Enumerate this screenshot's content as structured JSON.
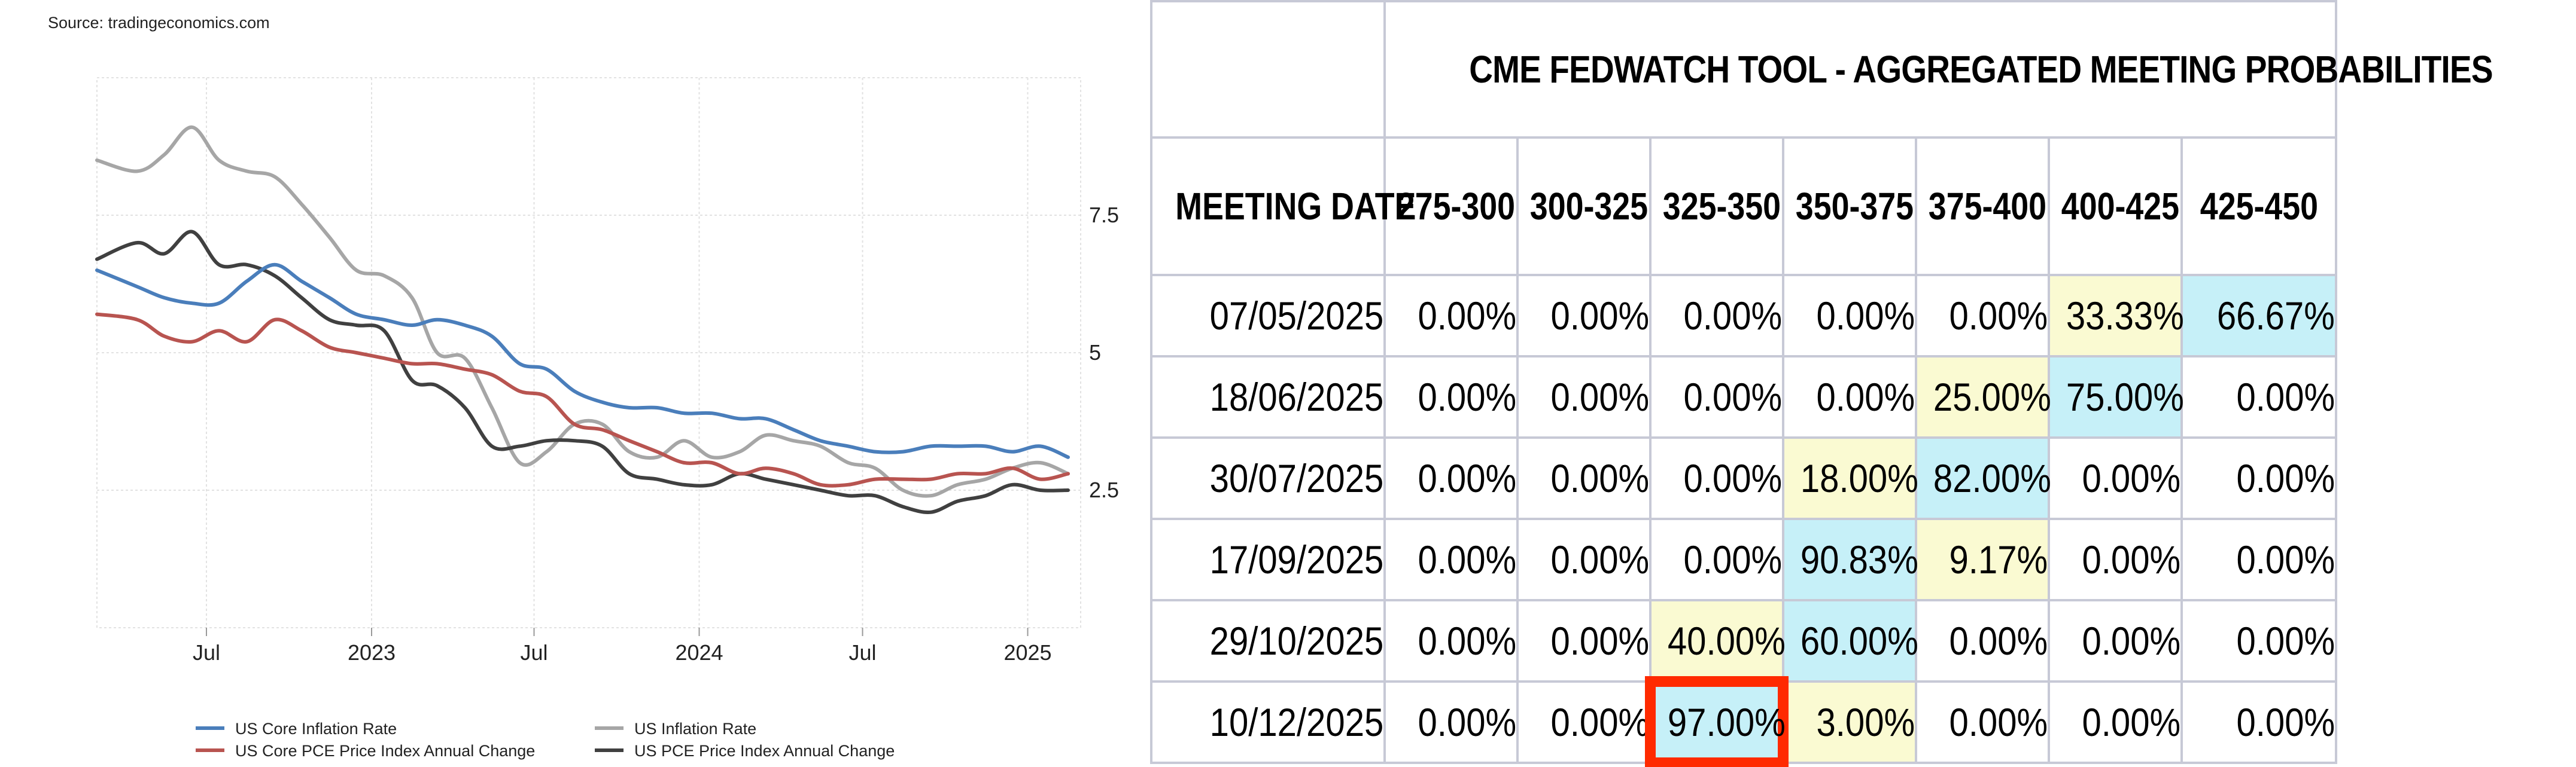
{
  "source_text": "Source: tradingeconomics.com",
  "chart_data": {
    "type": "line",
    "title": "",
    "xlabel": "",
    "ylabel": "",
    "x_ticks": [
      {
        "label": "Jul",
        "date": "2022-07-01"
      },
      {
        "label": "2023",
        "date": "2023-01-01"
      },
      {
        "label": "Jul",
        "date": "2023-07-01"
      },
      {
        "label": "2024",
        "date": "2024-01-01"
      },
      {
        "label": "Jul",
        "date": "2024-07-01"
      },
      {
        "label": "2025",
        "date": "2025-01-01"
      }
    ],
    "x_range": [
      "2022-03-01",
      "2025-03-01"
    ],
    "y_ticks": [
      {
        "label": "2.5",
        "value": 2.5
      },
      {
        "label": "5",
        "value": 5
      },
      {
        "label": "7.5",
        "value": 7.5
      }
    ],
    "ylim": [
      0,
      10
    ],
    "y_axis_position": "right",
    "grid": true,
    "legend_position": "bottom",
    "x": [
      "2022-03",
      "2022-04",
      "2022-05",
      "2022-06",
      "2022-07",
      "2022-08",
      "2022-09",
      "2022-10",
      "2022-11",
      "2022-12",
      "2023-01",
      "2023-02",
      "2023-03",
      "2023-04",
      "2023-05",
      "2023-06",
      "2023-07",
      "2023-08",
      "2023-09",
      "2023-10",
      "2023-11",
      "2023-12",
      "2024-01",
      "2024-02",
      "2024-03",
      "2024-04",
      "2024-05",
      "2024-06",
      "2024-07",
      "2024-08",
      "2024-09",
      "2024-10",
      "2024-11",
      "2024-12",
      "2025-01",
      "2025-02"
    ],
    "series": [
      {
        "name": "US Core Inflation Rate",
        "color": "#4a7ebb",
        "values": [
          6.5,
          6.2,
          6.0,
          5.9,
          5.9,
          6.3,
          6.6,
          6.3,
          6.0,
          5.7,
          5.6,
          5.5,
          5.6,
          5.5,
          5.3,
          4.8,
          4.7,
          4.3,
          4.1,
          4.0,
          4.0,
          3.9,
          3.9,
          3.8,
          3.8,
          3.6,
          3.4,
          3.3,
          3.2,
          3.2,
          3.3,
          3.3,
          3.3,
          3.2,
          3.3,
          3.1
        ]
      },
      {
        "name": "US Inflation Rate",
        "color": "#a6a6a6",
        "values": [
          8.5,
          8.3,
          8.6,
          9.1,
          8.5,
          8.3,
          8.2,
          7.7,
          7.1,
          6.5,
          6.4,
          6.0,
          5.0,
          4.9,
          4.0,
          3.0,
          3.2,
          3.7,
          3.7,
          3.2,
          3.1,
          3.4,
          3.1,
          3.2,
          3.5,
          3.4,
          3.3,
          3.0,
          2.9,
          2.5,
          2.4,
          2.6,
          2.7,
          2.9,
          3.0,
          2.8
        ]
      },
      {
        "name": "US Core PCE Price Index Annual Change",
        "color": "#b85450",
        "values": [
          5.7,
          5.6,
          5.3,
          5.2,
          5.4,
          5.2,
          5.6,
          5.4,
          5.1,
          5.0,
          4.9,
          4.8,
          4.8,
          4.7,
          4.6,
          4.3,
          4.2,
          3.7,
          3.6,
          3.4,
          3.2,
          3.0,
          3.0,
          2.8,
          2.9,
          2.8,
          2.6,
          2.6,
          2.7,
          2.7,
          2.7,
          2.8,
          2.8,
          2.9,
          2.7,
          2.8
        ]
      },
      {
        "name": "US PCE Price Index Annual Change",
        "color": "#404040",
        "values": [
          6.7,
          7.0,
          6.8,
          7.2,
          6.6,
          6.6,
          6.4,
          6.0,
          5.6,
          5.5,
          5.4,
          4.5,
          4.4,
          4.0,
          3.3,
          3.3,
          3.4,
          3.4,
          3.3,
          2.8,
          2.7,
          2.6,
          2.6,
          2.8,
          2.7,
          2.6,
          2.5,
          2.4,
          2.4,
          2.2,
          2.1,
          2.3,
          2.4,
          2.6,
          2.5,
          2.5
        ]
      }
    ]
  },
  "fedwatch": {
    "title": "CME FEDWATCH TOOL - AGGREGATED MEETING PROBABILITIES",
    "date_header": "MEETING DATE",
    "ranges": [
      "275-300",
      "300-325",
      "325-350",
      "350-375",
      "375-400",
      "400-425",
      "425-450"
    ],
    "rows": [
      {
        "date": "07/05/2025",
        "probs": [
          "0.00%",
          "0.00%",
          "0.00%",
          "0.00%",
          "0.00%",
          "33.33%",
          "66.67%"
        ]
      },
      {
        "date": "18/06/2025",
        "probs": [
          "0.00%",
          "0.00%",
          "0.00%",
          "0.00%",
          "25.00%",
          "75.00%",
          "0.00%"
        ]
      },
      {
        "date": "30/07/2025",
        "probs": [
          "0.00%",
          "0.00%",
          "0.00%",
          "18.00%",
          "82.00%",
          "0.00%",
          "0.00%"
        ]
      },
      {
        "date": "17/09/2025",
        "probs": [
          "0.00%",
          "0.00%",
          "0.00%",
          "90.83%",
          "9.17%",
          "0.00%",
          "0.00%"
        ]
      },
      {
        "date": "29/10/2025",
        "probs": [
          "0.00%",
          "0.00%",
          "40.00%",
          "60.00%",
          "0.00%",
          "0.00%",
          "0.00%"
        ]
      },
      {
        "date": "10/12/2025",
        "probs": [
          "0.00%",
          "0.00%",
          "97.00%",
          "3.00%",
          "0.00%",
          "0.00%",
          "0.00%"
        ]
      }
    ],
    "highlight_colors": {
      "secondary": "#fafad2",
      "primary": "#c6f0f8",
      "marker": "#ff2a00"
    }
  }
}
